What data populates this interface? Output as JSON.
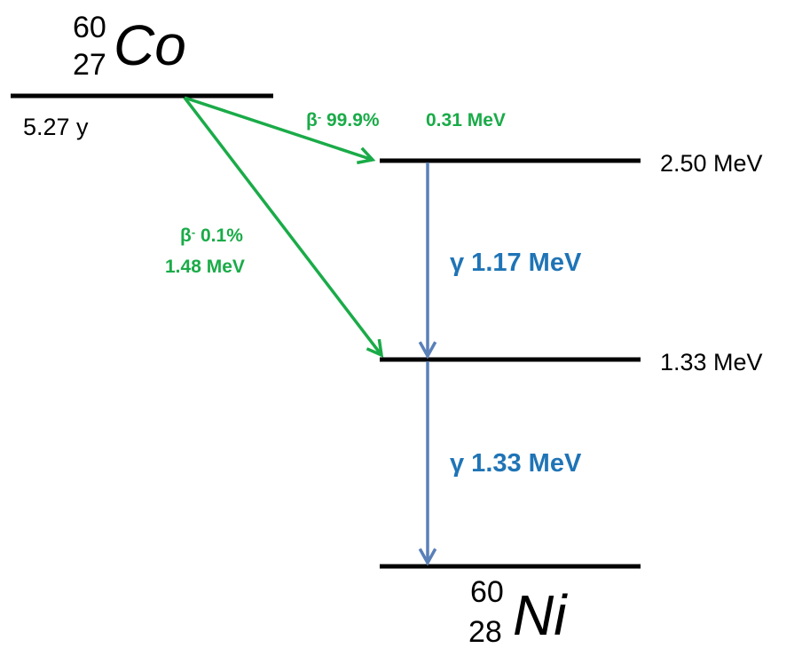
{
  "colors": {
    "level_line": "#000000",
    "beta": "#1aab48",
    "gamma_arrow": "#5a80b8",
    "gamma_text": "#1f74b6"
  },
  "parent": {
    "mass_number": "60",
    "atomic_number": "27",
    "symbol": "Co",
    "half_life": "5.27 y"
  },
  "daughter": {
    "mass_number": "60",
    "atomic_number": "28",
    "symbol": "Ni"
  },
  "levels": [
    {
      "energy_label": "2.50 MeV"
    },
    {
      "energy_label": "1.33 MeV"
    }
  ],
  "beta_decays": [
    {
      "prefix": "β",
      "sup": "-",
      "branch": " 99.9%",
      "energy": "0.31 MeV"
    },
    {
      "prefix": "β",
      "sup": "-",
      "branch": " 0.1%",
      "energy": "1.48 MeV"
    }
  ],
  "gamma_transitions": [
    {
      "label": "γ 1.17 MeV"
    },
    {
      "label": "γ 1.33 MeV"
    }
  ]
}
